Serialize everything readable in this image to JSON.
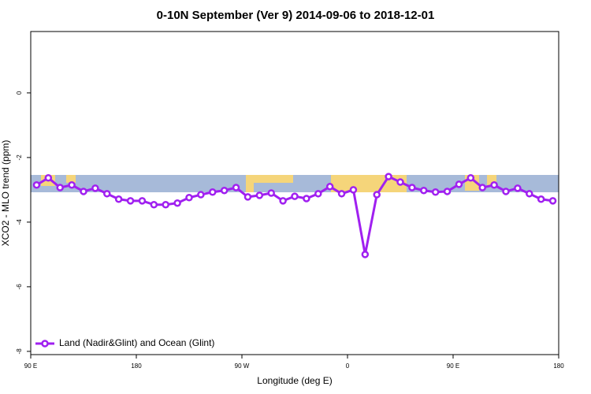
{
  "chart_data": {
    "type": "line",
    "title": "0-10N September (Ver 9)   2014-09-06 to 2018-12-01",
    "x_label": "Longitude (deg E)",
    "y_label": "XCO2 - MLO trend (ppm)",
    "x": [
      95,
      105,
      115,
      125,
      135,
      145,
      155,
      165,
      175,
      185,
      195,
      205,
      215,
      225,
      235,
      245,
      255,
      265,
      275,
      285,
      295,
      305,
      315,
      325,
      335,
      345,
      355,
      365,
      375,
      385,
      395,
      405,
      415,
      425,
      435,
      445,
      455,
      465,
      475,
      485,
      495,
      505,
      515,
      525,
      535
    ],
    "series": [
      {
        "name": "Land (Nadir&Glint) and Ocean (Glint)",
        "color": "#a020f0",
        "values": [
          -2.85,
          -2.63,
          -2.93,
          -2.85,
          -3.05,
          -2.95,
          -3.12,
          -3.29,
          -3.34,
          -3.34,
          -3.46,
          -3.46,
          -3.41,
          -3.24,
          -3.15,
          -3.07,
          -3.02,
          -2.93,
          -3.22,
          -3.17,
          -3.1,
          -3.34,
          -3.2,
          -3.27,
          -3.12,
          -2.9,
          -3.12,
          -3.0,
          -5.0,
          -3.15,
          -2.59,
          -2.76,
          -2.93,
          -3.02,
          -3.07,
          -3.05,
          -2.83,
          -2.63,
          -2.93,
          -2.85,
          -3.05,
          -2.95,
          -3.12,
          -3.29,
          -3.34
        ]
      }
    ],
    "xlim": [
      90,
      540
    ],
    "xticks": [
      {
        "value": 90,
        "label": "90 E"
      },
      180,
      {
        "value": 270,
        "label": "90 W"
      },
      {
        "value": 360,
        "label": "0"
      },
      {
        "value": 450,
        "label": "90 E"
      },
      {
        "value": 540,
        "label": "180"
      }
    ],
    "ylim": [
      -8.1,
      1.9
    ],
    "yticks": [
      0,
      -2,
      -4,
      -6,
      -8
    ],
    "legend": "bottom-left"
  }
}
